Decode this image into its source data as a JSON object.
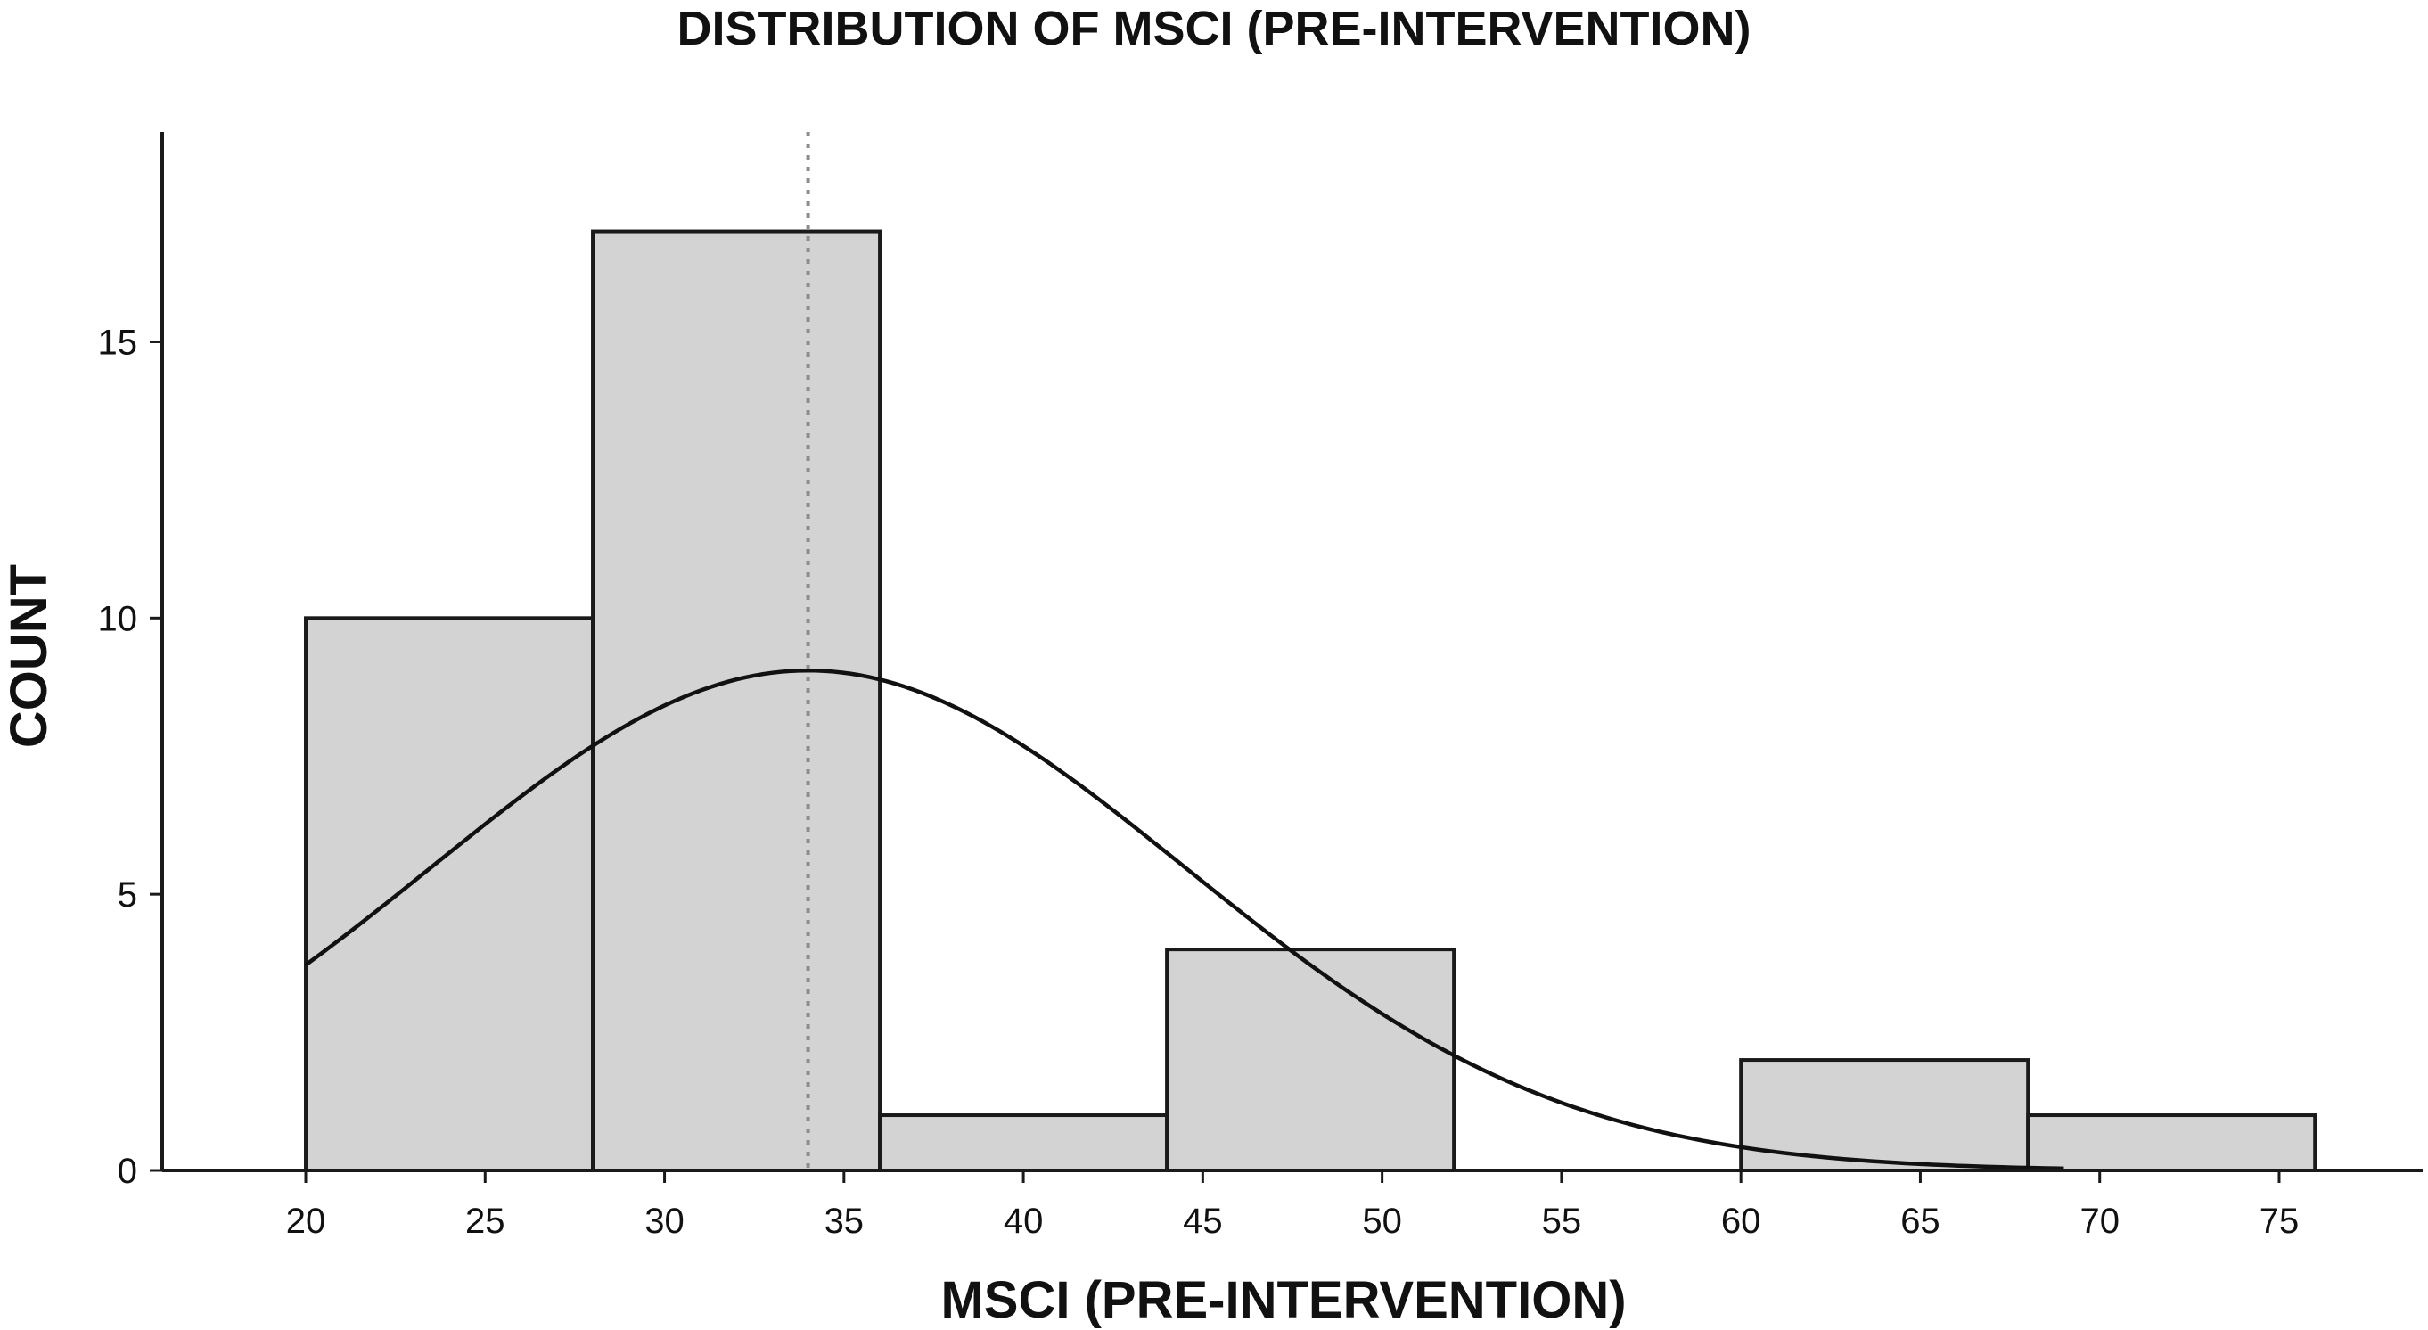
{
  "chart_data": {
    "type": "bar",
    "subtype": "histogram",
    "title": "DISTRIBUTION OF MSCI (PRE-INTERVENTION)",
    "xlabel": "MSCI (PRE-INTERVENTION)",
    "ylabel": "COUNT",
    "bins": [
      {
        "start": 20,
        "end": 28,
        "count": 10
      },
      {
        "start": 28,
        "end": 36,
        "count": 17
      },
      {
        "start": 36,
        "end": 44,
        "count": 1
      },
      {
        "start": 44,
        "end": 52,
        "count": 4
      },
      {
        "start": 52,
        "end": 60,
        "count": 0
      },
      {
        "start": 60,
        "end": 68,
        "count": 2
      },
      {
        "start": 68,
        "end": 76,
        "count": 1
      }
    ],
    "xlim": [
      16,
      79
    ],
    "ylim": [
      0,
      18.8
    ],
    "xticks": [
      20,
      25,
      30,
      35,
      40,
      45,
      50,
      55,
      60,
      65,
      70,
      75
    ],
    "yticks": [
      0,
      5,
      10,
      15
    ],
    "normal_curve": {
      "mean": 34,
      "sd": 10.5,
      "peak": 9.05,
      "x_range": [
        20,
        69
      ]
    },
    "mean_line": {
      "x": 34
    },
    "grid": false
  }
}
